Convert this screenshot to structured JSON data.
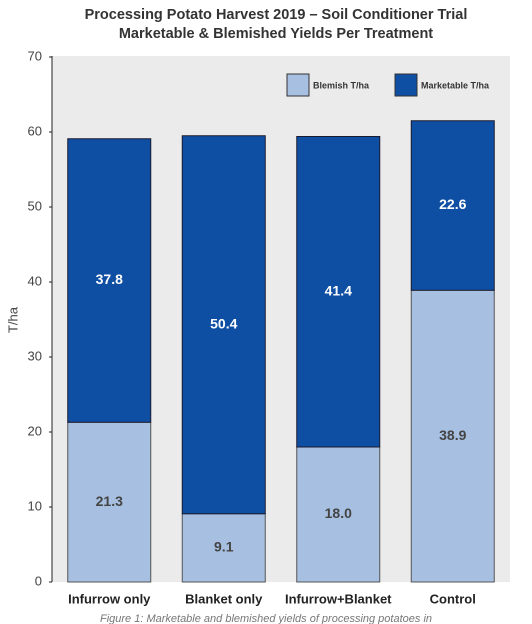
{
  "chart_data": {
    "type": "stacked-bar",
    "title": "Processing Potato Harvest 2019 – Soil Conditioner Trial",
    "subtitle": "Marketable & Blemished Yields Per Treatment",
    "y_label": "T/ha",
    "caption": "Figure 1: Marketable and blemished yields of processing potatoes in",
    "categories": [
      "Infurrow only",
      "Blanket only",
      "Infurrow+Blanket",
      "Control"
    ],
    "series": [
      {
        "name": "Blemish T/ha",
        "color": "#a7bfe1",
        "values": [
          21.3,
          9.1,
          18.0,
          38.9
        ],
        "value_labels": [
          "21.3",
          "9.1",
          "18.0",
          "38.9"
        ]
      },
      {
        "name": "Marketable T/ha",
        "color": "#0e4ea3",
        "values": [
          37.8,
          50.4,
          41.4,
          22.6
        ]
      }
    ],
    "ylim": [
      0,
      70
    ],
    "yticks": [
      0,
      10,
      20,
      30,
      40,
      50,
      60,
      70
    ],
    "legend": "top-right"
  }
}
